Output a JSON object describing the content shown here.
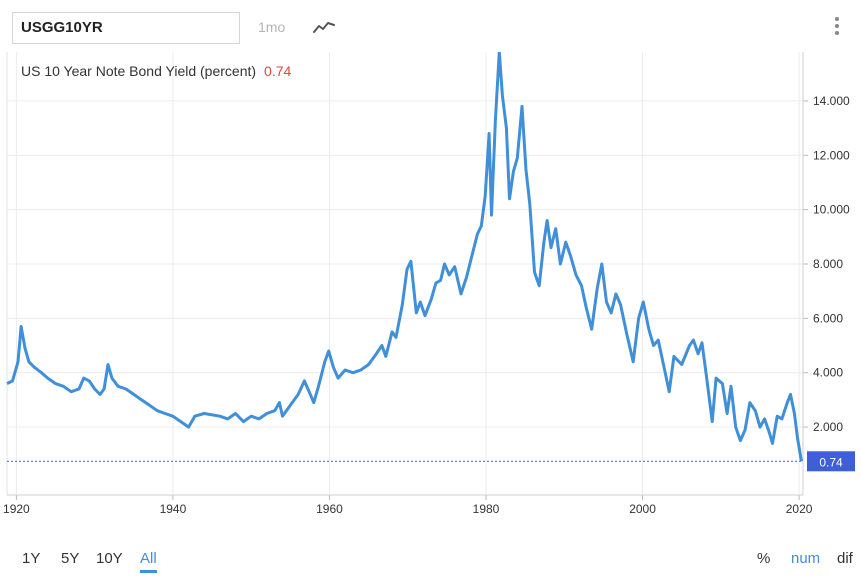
{
  "toolbar": {
    "symbol": "USGG10YR",
    "interval": "1mo",
    "chart_type_icon": "line-chart-icon",
    "menu_icon": "vertical-dots-icon"
  },
  "legend": {
    "title": "US 10 Year Note Bond Yield (percent)",
    "last_value": "0.74"
  },
  "range_buttons": [
    "1Y",
    "5Y",
    "10Y",
    "All"
  ],
  "range_selected": "All",
  "mode_buttons": [
    "%",
    "num",
    "dif"
  ],
  "mode_selected": "num",
  "colors": {
    "line": "#3f8fd9",
    "last_label_bg": "#3f5fd8",
    "last_value_text": "#e0443a"
  },
  "chart_data": {
    "type": "line",
    "title": "US 10 Year Note Bond Yield (percent)",
    "x_ticks": [
      "1920",
      "1940",
      "1960",
      "1980",
      "2000",
      "2020"
    ],
    "y_ticks": [
      "2.000",
      "4.000",
      "6.000",
      "8.000",
      "10.000",
      "12.000",
      "14.000"
    ],
    "xlim": [
      1918.8,
      2020.5
    ],
    "ylim": [
      -0.5,
      15.8
    ],
    "last_value_label": "0.74",
    "series": [
      {
        "values": [
          [
            1918.8,
            3.6
          ],
          [
            1919.5,
            3.7
          ],
          [
            1920.2,
            4.4
          ],
          [
            1920.6,
            5.7
          ],
          [
            1921.1,
            4.9
          ],
          [
            1921.6,
            4.4
          ],
          [
            1922.3,
            4.2
          ],
          [
            1923.2,
            4.0
          ],
          [
            1924.0,
            3.8
          ],
          [
            1925.0,
            3.6
          ],
          [
            1926.0,
            3.5
          ],
          [
            1927.0,
            3.3
          ],
          [
            1928.0,
            3.4
          ],
          [
            1928.6,
            3.8
          ],
          [
            1929.3,
            3.7
          ],
          [
            1930.0,
            3.4
          ],
          [
            1930.7,
            3.2
          ],
          [
            1931.2,
            3.4
          ],
          [
            1931.7,
            4.3
          ],
          [
            1932.2,
            3.8
          ],
          [
            1933.0,
            3.5
          ],
          [
            1934.0,
            3.4
          ],
          [
            1935.0,
            3.2
          ],
          [
            1936.0,
            3.0
          ],
          [
            1937.0,
            2.8
          ],
          [
            1938.0,
            2.6
          ],
          [
            1939.0,
            2.5
          ],
          [
            1940.0,
            2.4
          ],
          [
            1941.0,
            2.2
          ],
          [
            1942.0,
            2.0
          ],
          [
            1942.8,
            2.4
          ],
          [
            1944.0,
            2.5
          ],
          [
            1946.0,
            2.4
          ],
          [
            1947.0,
            2.3
          ],
          [
            1948.0,
            2.5
          ],
          [
            1949.0,
            2.2
          ],
          [
            1950.0,
            2.4
          ],
          [
            1951.0,
            2.3
          ],
          [
            1952.0,
            2.5
          ],
          [
            1953.0,
            2.6
          ],
          [
            1953.6,
            2.9
          ],
          [
            1954.0,
            2.4
          ],
          [
            1955.0,
            2.8
          ],
          [
            1956.0,
            3.2
          ],
          [
            1956.8,
            3.7
          ],
          [
            1957.4,
            3.3
          ],
          [
            1958.0,
            2.9
          ],
          [
            1958.6,
            3.5
          ],
          [
            1959.4,
            4.4
          ],
          [
            1959.9,
            4.8
          ],
          [
            1960.5,
            4.2
          ],
          [
            1961.1,
            3.8
          ],
          [
            1962.0,
            4.1
          ],
          [
            1963.0,
            4.0
          ],
          [
            1964.0,
            4.1
          ],
          [
            1965.0,
            4.3
          ],
          [
            1966.0,
            4.7
          ],
          [
            1966.7,
            5.0
          ],
          [
            1967.2,
            4.6
          ],
          [
            1968.0,
            5.5
          ],
          [
            1968.5,
            5.3
          ],
          [
            1969.3,
            6.5
          ],
          [
            1969.9,
            7.8
          ],
          [
            1970.4,
            8.1
          ],
          [
            1971.1,
            6.2
          ],
          [
            1971.6,
            6.6
          ],
          [
            1972.2,
            6.1
          ],
          [
            1973.0,
            6.7
          ],
          [
            1973.6,
            7.3
          ],
          [
            1974.2,
            7.4
          ],
          [
            1974.7,
            8.0
          ],
          [
            1975.3,
            7.6
          ],
          [
            1976.0,
            7.9
          ],
          [
            1976.8,
            6.9
          ],
          [
            1977.5,
            7.5
          ],
          [
            1978.2,
            8.3
          ],
          [
            1978.9,
            9.1
          ],
          [
            1979.4,
            9.4
          ],
          [
            1979.9,
            10.5
          ],
          [
            1980.4,
            12.8
          ],
          [
            1980.7,
            9.8
          ],
          [
            1981.2,
            13.3
          ],
          [
            1981.7,
            15.8
          ],
          [
            1982.1,
            14.2
          ],
          [
            1982.6,
            13.0
          ],
          [
            1983.0,
            10.4
          ],
          [
            1983.5,
            11.4
          ],
          [
            1984.0,
            11.9
          ],
          [
            1984.6,
            13.8
          ],
          [
            1985.1,
            11.5
          ],
          [
            1985.6,
            10.2
          ],
          [
            1986.2,
            7.7
          ],
          [
            1986.8,
            7.2
          ],
          [
            1987.4,
            8.8
          ],
          [
            1987.8,
            9.6
          ],
          [
            1988.3,
            8.6
          ],
          [
            1988.9,
            9.3
          ],
          [
            1989.5,
            8.0
          ],
          [
            1990.2,
            8.8
          ],
          [
            1990.8,
            8.3
          ],
          [
            1991.5,
            7.6
          ],
          [
            1992.2,
            7.2
          ],
          [
            1992.8,
            6.4
          ],
          [
            1993.5,
            5.6
          ],
          [
            1994.2,
            7.1
          ],
          [
            1994.8,
            8.0
          ],
          [
            1995.4,
            6.6
          ],
          [
            1996.0,
            6.2
          ],
          [
            1996.6,
            6.9
          ],
          [
            1997.2,
            6.5
          ],
          [
            1998.0,
            5.4
          ],
          [
            1998.8,
            4.4
          ],
          [
            1999.5,
            6.0
          ],
          [
            2000.1,
            6.6
          ],
          [
            2000.8,
            5.6
          ],
          [
            2001.4,
            5.0
          ],
          [
            2002.0,
            5.2
          ],
          [
            2002.9,
            4.0
          ],
          [
            2003.4,
            3.3
          ],
          [
            2004.0,
            4.6
          ],
          [
            2005.0,
            4.3
          ],
          [
            2006.0,
            5.0
          ],
          [
            2006.5,
            5.2
          ],
          [
            2007.1,
            4.7
          ],
          [
            2007.6,
            5.1
          ],
          [
            2008.2,
            3.8
          ],
          [
            2008.9,
            2.2
          ],
          [
            2009.4,
            3.8
          ],
          [
            2010.2,
            3.6
          ],
          [
            2010.8,
            2.5
          ],
          [
            2011.3,
            3.5
          ],
          [
            2011.9,
            2.0
          ],
          [
            2012.5,
            1.5
          ],
          [
            2013.1,
            1.9
          ],
          [
            2013.7,
            2.9
          ],
          [
            2014.4,
            2.6
          ],
          [
            2015.0,
            2.0
          ],
          [
            2015.6,
            2.3
          ],
          [
            2016.2,
            1.8
          ],
          [
            2016.6,
            1.4
          ],
          [
            2017.2,
            2.4
          ],
          [
            2017.8,
            2.3
          ],
          [
            2018.5,
            2.9
          ],
          [
            2018.9,
            3.2
          ],
          [
            2019.4,
            2.5
          ],
          [
            2019.8,
            1.6
          ],
          [
            2020.3,
            0.74
          ]
        ]
      }
    ]
  }
}
